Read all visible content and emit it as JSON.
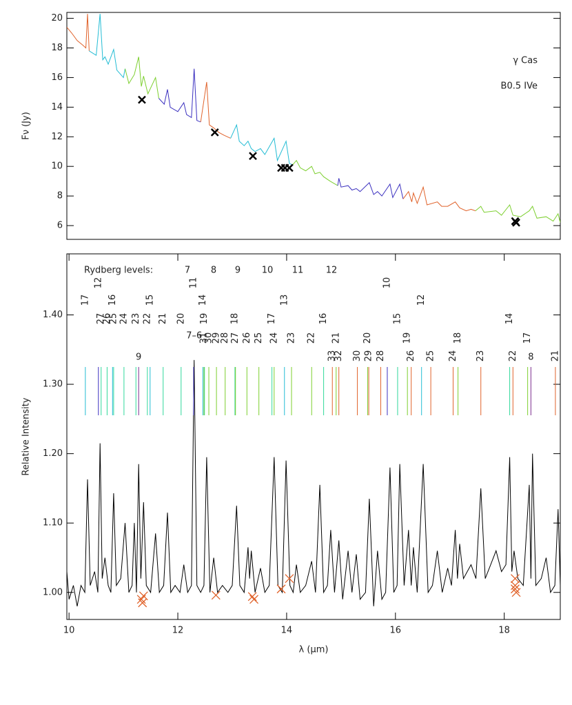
{
  "chart_data": [
    {
      "type": "line",
      "ylabel": "Fν (Jy)",
      "annotations": [
        {
          "text": "γ Cas"
        },
        {
          "text": "B0.5 IVe"
        }
      ],
      "xlim": [
        9.96,
        19.03
      ],
      "ylim": [
        5.07,
        20.4
      ],
      "yticks": [
        6,
        8,
        10,
        12,
        14,
        16,
        18,
        20
      ],
      "series": [
        {
          "color": "#e0622a",
          "x": [
            9.96,
            10.05,
            10.15,
            10.25,
            10.31,
            10.34,
            10.37
          ],
          "values": [
            19.4,
            19.0,
            18.5,
            18.2,
            18.0,
            20.3,
            17.8
          ]
        },
        {
          "color": "#22bcd4",
          "x": [
            10.37,
            10.5,
            10.57,
            10.62,
            10.66,
            10.72,
            10.82,
            10.88,
            11.0,
            11.03
          ],
          "values": [
            17.8,
            17.5,
            20.3,
            17.2,
            17.4,
            16.9,
            17.9,
            16.5,
            16.0,
            16.6
          ]
        },
        {
          "color": "#7ccf2e",
          "x": [
            11.03,
            11.1,
            11.2,
            11.28,
            11.33,
            11.37,
            11.45,
            11.59,
            11.65
          ],
          "values": [
            16.6,
            15.6,
            16.2,
            17.4,
            15.4,
            16.1,
            14.9,
            16.0,
            14.6
          ]
        },
        {
          "color": "#3a2fbf",
          "x": [
            11.65,
            11.75,
            11.81,
            11.86,
            12.0,
            12.11,
            12.16,
            12.25,
            12.3,
            12.35,
            12.42
          ],
          "values": [
            14.6,
            14.2,
            15.2,
            14.0,
            13.7,
            14.3,
            13.5,
            13.3,
            16.6,
            13.1,
            13.0
          ]
        },
        {
          "color": "#e0622a",
          "x": [
            12.42,
            12.53,
            12.58,
            12.66,
            12.75,
            12.85,
            12.97
          ],
          "values": [
            13.0,
            15.7,
            12.8,
            12.6,
            12.3,
            12.1,
            11.9
          ]
        },
        {
          "color": "#22bcd4",
          "x": [
            12.97,
            13.08,
            13.13,
            13.22,
            13.29,
            13.35,
            13.42,
            13.52,
            13.6,
            13.77,
            13.83,
            13.99,
            14.05,
            14.11
          ],
          "values": [
            11.9,
            12.8,
            11.7,
            11.4,
            11.7,
            11.2,
            11.0,
            11.2,
            10.8,
            11.9,
            10.4,
            11.7,
            10.2,
            10.1
          ]
        },
        {
          "color": "#7ccf2e",
          "x": [
            14.11,
            14.18,
            14.25,
            14.35,
            14.46,
            14.52,
            14.61,
            14.68,
            14.8,
            14.94
          ],
          "values": [
            10.1,
            10.4,
            9.9,
            9.7,
            10.0,
            9.5,
            9.6,
            9.3,
            9.0,
            8.7
          ]
        },
        {
          "color": "#3a2fbf",
          "x": [
            14.94,
            14.96,
            15.0,
            15.13,
            15.2,
            15.28,
            15.35,
            15.52,
            15.6,
            15.67,
            15.75,
            15.9,
            15.95,
            16.08,
            16.14
          ],
          "values": [
            8.7,
            9.2,
            8.6,
            8.7,
            8.4,
            8.5,
            8.3,
            8.9,
            8.1,
            8.3,
            8.0,
            8.8,
            7.9,
            8.8,
            7.8
          ]
        },
        {
          "color": "#e0622a",
          "x": [
            16.14,
            16.24,
            16.3,
            16.33,
            16.4,
            16.51,
            16.58,
            16.77,
            16.85,
            16.96,
            17.1,
            17.18,
            17.3,
            17.39,
            17.47
          ],
          "values": [
            7.8,
            8.3,
            7.6,
            8.2,
            7.5,
            8.6,
            7.4,
            7.6,
            7.3,
            7.3,
            7.6,
            7.2,
            7.0,
            7.1,
            7.0
          ]
        },
        {
          "color": "#7ccf2e",
          "x": [
            17.47,
            17.57,
            17.63,
            17.85,
            17.95,
            18.1,
            18.16,
            18.3,
            18.46,
            18.52,
            18.6,
            18.77,
            18.9,
            18.99,
            19.03
          ],
          "values": [
            7.0,
            7.3,
            6.9,
            7.0,
            6.7,
            7.4,
            6.7,
            6.6,
            7.0,
            7.3,
            6.5,
            6.6,
            6.3,
            6.8,
            6.2
          ]
        }
      ],
      "markers": {
        "color": "#000000",
        "x": [
          11.34,
          12.68,
          13.38,
          13.9,
          13.97,
          14.05,
          18.2,
          18.22
        ],
        "values": [
          14.5,
          12.3,
          10.7,
          9.9,
          9.9,
          9.9,
          6.3,
          6.2
        ]
      }
    },
    {
      "type": "line",
      "xlabel": "λ (μm)",
      "ylabel": "Relative Intensity",
      "xlim": [
        9.96,
        19.03
      ],
      "xticks": [
        10,
        12,
        14,
        16,
        18
      ],
      "ylim": [
        0.961,
        1.488
      ],
      "yticks": [
        {
          "value": 1.0,
          "label": "1.00"
        },
        {
          "value": 1.1,
          "label": "1.10"
        },
        {
          "value": 1.2,
          "label": "1.20"
        },
        {
          "value": 1.3,
          "label": "1.30"
        },
        {
          "value": 1.4,
          "label": "1.40"
        }
      ],
      "series": [
        {
          "color": "#000000",
          "x": [
            9.96,
            10.0,
            10.08,
            10.15,
            10.22,
            10.29,
            10.34,
            10.39,
            10.47,
            10.53,
            10.57,
            10.61,
            10.66,
            10.72,
            10.77,
            10.82,
            10.87,
            10.95,
            11.03,
            11.1,
            11.16,
            11.2,
            11.24,
            11.28,
            11.32,
            11.37,
            11.42,
            11.5,
            11.59,
            11.66,
            11.74,
            11.81,
            11.87,
            11.95,
            12.04,
            12.11,
            12.18,
            12.25,
            12.3,
            12.35,
            12.42,
            12.48,
            12.53,
            12.59,
            12.66,
            12.73,
            12.82,
            12.92,
            13.0,
            13.08,
            13.14,
            13.22,
            13.29,
            13.32,
            13.35,
            13.42,
            13.52,
            13.6,
            13.68,
            13.77,
            13.84,
            13.92,
            13.99,
            14.06,
            14.12,
            14.18,
            14.25,
            14.35,
            14.46,
            14.53,
            14.61,
            14.68,
            14.75,
            14.81,
            14.88,
            14.96,
            15.03,
            15.13,
            15.2,
            15.28,
            15.35,
            15.45,
            15.52,
            15.6,
            15.67,
            15.75,
            15.82,
            15.9,
            15.97,
            16.03,
            16.08,
            16.16,
            16.24,
            16.29,
            16.33,
            16.4,
            16.51,
            16.6,
            16.68,
            16.77,
            16.86,
            16.96,
            17.03,
            17.1,
            17.14,
            17.18,
            17.25,
            17.32,
            17.39,
            17.48,
            17.57,
            17.65,
            17.75,
            17.85,
            17.95,
            18.03,
            18.1,
            18.14,
            18.18,
            18.25,
            18.35,
            18.46,
            18.49,
            18.52,
            18.58,
            18.68,
            18.77,
            18.85,
            18.93,
            18.99,
            19.03
          ],
          "values": [
            1.03,
            0.99,
            1.01,
            0.98,
            1.01,
            1.0,
            1.163,
            1.01,
            1.03,
            1.0,
            1.215,
            1.02,
            1.05,
            1.01,
            1.0,
            1.143,
            1.01,
            1.02,
            1.1,
            1.0,
            1.01,
            1.1,
            1.0,
            1.185,
            1.02,
            1.13,
            1.01,
            1.0,
            1.085,
            1.0,
            1.01,
            1.115,
            1.0,
            1.01,
            1.0,
            1.04,
            1.0,
            1.01,
            1.335,
            1.01,
            1.0,
            1.01,
            1.195,
            1.0,
            1.05,
            1.0,
            1.01,
            1.0,
            1.01,
            1.125,
            1.01,
            1.0,
            1.065,
            1.02,
            1.06,
            1.0,
            1.035,
            1.0,
            1.01,
            1.195,
            1.01,
            1.0,
            1.19,
            1.01,
            1.0,
            1.04,
            1.0,
            1.01,
            1.045,
            1.0,
            1.155,
            1.0,
            1.01,
            1.09,
            1.0,
            1.075,
            0.99,
            1.06,
            1.0,
            1.055,
            0.99,
            1.0,
            1.135,
            0.98,
            1.06,
            0.99,
            1.0,
            1.18,
            1.0,
            1.01,
            1.185,
            1.01,
            1.09,
            1.01,
            1.065,
            1.0,
            1.185,
            1.0,
            1.01,
            1.06,
            1.0,
            1.035,
            1.01,
            1.09,
            1.02,
            1.07,
            1.02,
            1.03,
            1.04,
            1.02,
            1.15,
            1.02,
            1.04,
            1.06,
            1.03,
            1.04,
            1.195,
            1.03,
            1.06,
            1.02,
            1.01,
            1.155,
            1.02,
            1.2,
            1.01,
            1.02,
            1.05,
            1.0,
            1.01,
            1.12,
            1.01
          ]
        }
      ],
      "markers": {
        "color": "#e0622a",
        "x": [
          11.33,
          11.35,
          11.37,
          12.7,
          13.37,
          13.4,
          13.9,
          14.05,
          18.2,
          18.2,
          18.2,
          18.22
        ],
        "values": [
          0.99,
          0.985,
          0.995,
          0.996,
          0.994,
          0.99,
          1.005,
          1.02,
          1.02,
          1.01,
          1.005,
          1.0
        ]
      },
      "rydberg": {
        "title": "Rydberg levels:",
        "levels": [
          {
            "name": "7",
            "color": "#7b2d8e",
            "lines": [
              {
                "x": 11.28,
                "label": "9"
              },
              {
                "x": 18.49,
                "label": "8"
              }
            ]
          },
          {
            "name": "8",
            "color": "#3a2fbf",
            "lines": [
              {
                "x": 10.54,
                "label": "12"
              },
              {
                "x": 12.29,
                "label": "11"
              },
              {
                "x": 15.85,
                "label": "10"
              }
            ]
          },
          {
            "name": "9",
            "color": "#22bcd4",
            "lines": [
              {
                "x": 10.3,
                "label": "17"
              },
              {
                "x": 10.8,
                "label": "16"
              },
              {
                "x": 11.49,
                "label": "15"
              },
              {
                "x": 12.46,
                "label": "14"
              },
              {
                "x": 13.96,
                "label": "13"
              },
              {
                "x": 16.48,
                "label": "12"
              }
            ]
          },
          {
            "name": "10",
            "color": "#2ed89a",
            "lines": [
              {
                "x": 10.59,
                "label": "27"
              },
              {
                "x": 10.7,
                "label": "26"
              },
              {
                "x": 10.82,
                "label": "25"
              },
              {
                "x": 11.01,
                "label": "24"
              },
              {
                "x": 11.23,
                "label": "23"
              },
              {
                "x": 11.44,
                "label": "22"
              },
              {
                "x": 11.73,
                "label": "21"
              },
              {
                "x": 12.06,
                "label": "20"
              },
              {
                "x": 12.49,
                "label": "19"
              },
              {
                "x": 13.05,
                "label": "18"
              },
              {
                "x": 13.73,
                "label": "17"
              },
              {
                "x": 14.68,
                "label": "16"
              },
              {
                "x": 16.04,
                "label": "15"
              },
              {
                "x": 18.1,
                "label": "14"
              }
            ]
          },
          {
            "name": "11",
            "color": "#7ccf2e",
            "lines": [
              {
                "x": 12.48,
                "label": "31"
              },
              {
                "x": 12.57,
                "label": "30"
              },
              {
                "x": 12.71,
                "label": "29"
              },
              {
                "x": 12.87,
                "label": "28"
              },
              {
                "x": 13.06,
                "label": "27"
              },
              {
                "x": 13.27,
                "label": "26"
              },
              {
                "x": 13.49,
                "label": "25"
              },
              {
                "x": 13.77,
                "label": "24"
              },
              {
                "x": 14.09,
                "label": "23"
              },
              {
                "x": 14.46,
                "label": "22"
              },
              {
                "x": 14.91,
                "label": "21"
              },
              {
                "x": 15.49,
                "label": "20"
              },
              {
                "x": 16.22,
                "label": "19"
              },
              {
                "x": 17.15,
                "label": "18"
              },
              {
                "x": 18.43,
                "label": "17"
              }
            ]
          },
          {
            "name": "12",
            "color": "#e0622a",
            "lines": [
              {
                "x": 14.84,
                "label": "33"
              },
              {
                "x": 14.96,
                "label": "32"
              },
              {
                "x": 15.3,
                "label": "30"
              },
              {
                "x": 15.51,
                "label": "29"
              },
              {
                "x": 15.73,
                "label": "28"
              },
              {
                "x": 16.29,
                "label": "26"
              },
              {
                "x": 16.65,
                "label": "25"
              },
              {
                "x": 17.06,
                "label": "24"
              },
              {
                "x": 17.57,
                "label": "23"
              },
              {
                "x": 18.16,
                "label": "22"
              },
              {
                "x": 18.94,
                "label": "21"
              }
            ]
          }
        ],
        "extra": {
          "text": "7–6",
          "x": 12.3,
          "color": "#000000"
        }
      }
    }
  ]
}
